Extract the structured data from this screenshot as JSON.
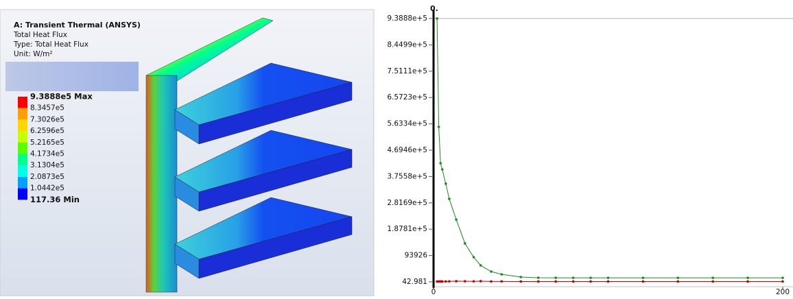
{
  "viewer": {
    "title": "A: Transient Thermal (ANSYS)",
    "lines": [
      "Total Heat Flux",
      "Type: Total Heat Flux",
      "Unit: W/m²"
    ],
    "legend_labels": [
      "9.3888e5 Max",
      "8.3457e5",
      "7.3026e5",
      "6.2596e5",
      "5.2165e5",
      "4.1734e5",
      "3.1304e5",
      "2.0873e5",
      "1.0442e5",
      "117.36 Min"
    ],
    "legend_colors": [
      "#ff0000",
      "#ffa000",
      "#ffd700",
      "#c8ff00",
      "#5aff00",
      "#00ff8c",
      "#00ffe6",
      "#00a0ff",
      "#0000ff"
    ]
  },
  "chart_data": {
    "type": "line",
    "top_label": "0.",
    "x": [
      2,
      3,
      4,
      5,
      7,
      9,
      13,
      18,
      23,
      27,
      33,
      39,
      50,
      60,
      70,
      80,
      90,
      100,
      120,
      140,
      160,
      180,
      200
    ],
    "series": [
      {
        "color": "#1a8c1a",
        "values": [
          938880,
          552570,
          423000,
          401000,
          350000,
          296000,
          222000,
          137000,
          88000,
          58700,
          36700,
          26900,
          17100,
          14700,
          14500,
          14400,
          14400,
          14400,
          14400,
          14400,
          14400,
          14400,
          14400
        ]
      },
      {
        "color": "#c80000",
        "values": [
          1200,
          1500,
          1300,
          1400,
          1600,
          1800,
          2400,
          2100,
          1900,
          2600,
          1500,
          1700,
          1400,
          1300,
          1300,
          1300,
          1300,
          1300,
          1300,
          1300,
          1300,
          1300,
          1300
        ]
      }
    ],
    "xlim": [
      0,
      200
    ],
    "xticks": [
      0,
      200
    ],
    "ylim": [
      42.981,
      938880
    ],
    "yticks": [
      42.981,
      93926,
      {
        "value": 187810,
        "label": "1.8781e+5"
      },
      {
        "value": 281690,
        "label": "2.8169e+5"
      },
      {
        "value": 375580,
        "label": "3.7558e+5"
      },
      {
        "value": 469460,
        "label": "4.6946e+5"
      },
      {
        "value": 563340,
        "label": "5.6334e+5"
      },
      {
        "value": 657230,
        "label": "6.5723e+5"
      },
      {
        "value": 751110,
        "label": "7.5111e+5"
      },
      {
        "value": 844990,
        "label": "8.4499e+5"
      },
      {
        "value": 938880,
        "label": "9.3888e+5"
      }
    ]
  }
}
